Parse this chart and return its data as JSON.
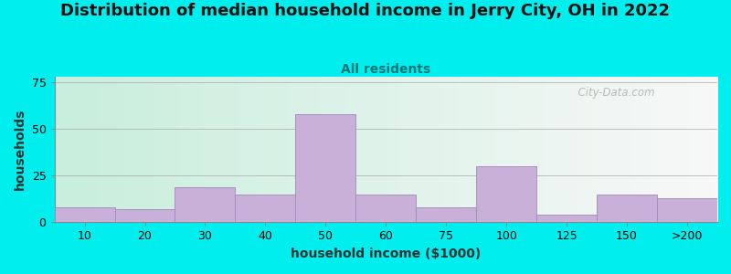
{
  "title": "Distribution of median household income in Jerry City, OH in 2022",
  "subtitle": "All residents",
  "xlabel": "household income ($1000)",
  "ylabel": "households",
  "background_color": "#00EEEE",
  "bar_color": "#c8b0d8",
  "bar_edge_color": "#a08aba",
  "yticks": [
    0,
    25,
    50,
    75
  ],
  "ylim": [
    0,
    78
  ],
  "categories": [
    "10",
    "20",
    "30",
    "40",
    "50",
    "60",
    "75",
    "100",
    "125",
    "150",
    ">200"
  ],
  "values": [
    8,
    7,
    19,
    15,
    58,
    15,
    8,
    30,
    4,
    15,
    13
  ],
  "title_fontsize": 13,
  "subtitle_fontsize": 10,
  "axis_label_fontsize": 10,
  "tick_fontsize": 9,
  "watermark_text": "  City-Data.com",
  "grad_left": "#c8eedd",
  "grad_right": "#f8f8f8"
}
